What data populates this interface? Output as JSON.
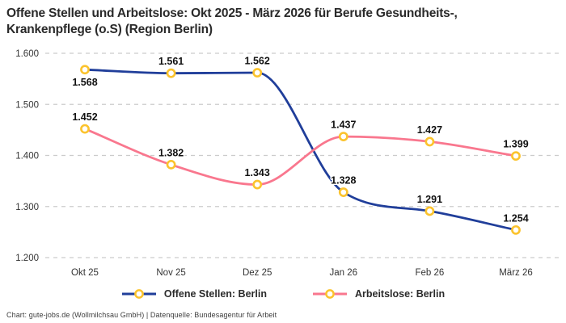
{
  "header": {
    "title_lines": [
      "Offene Stellen und Arbeitslose: Okt 2025 - März 2026 für Berufe Gesundheits-,",
      "Krankenpflege (o.S) (Region Berlin)"
    ]
  },
  "footer": {
    "text": "Chart: gute-jobs.de (Wollmilchsau GmbH) | Datenquelle: Bundesagentur für Arbeit"
  },
  "colors": {
    "title": "#2a2a2a",
    "grid": "#cccccc",
    "axis_text": "#333333",
    "data_label": "#111111",
    "footer_text": "#3d3d3d"
  },
  "chart_data": {
    "type": "line",
    "title": "Offene Stellen und Arbeitslose: Okt 2025 - März 2026 für Berufe Gesundheits-, Krankenpflege (o.S) (Region Berlin)",
    "categories": [
      "Okt 25",
      "Nov 25",
      "Dez 25",
      "Jan 26",
      "Feb 26",
      "März 26"
    ],
    "series": [
      {
        "name": "Offene Stellen: Berlin",
        "color": "#203e9a",
        "values": [
          1568,
          1561,
          1562,
          1328,
          1291,
          1254
        ],
        "point_labels": [
          "1.568",
          "1.561",
          "1.562",
          "1.328",
          "1.291",
          "1.254"
        ],
        "label_placement": [
          "below",
          "above",
          "above",
          "above",
          "above",
          "above"
        ]
      },
      {
        "name": "Arbeitslose: Berlin",
        "color": "#f9778e",
        "values": [
          1452,
          1382,
          1343,
          1437,
          1427,
          1399
        ],
        "point_labels": [
          "1.452",
          "1.382",
          "1.343",
          "1.437",
          "1.427",
          "1.399"
        ],
        "label_placement": [
          "above",
          "above",
          "above",
          "above",
          "above",
          "above"
        ]
      }
    ],
    "xlabel": "",
    "ylabel": "",
    "ylim": [
      1200,
      1600
    ],
    "yticks": [
      1200,
      1300,
      1400,
      1500,
      1600
    ],
    "ytick_labels": [
      "1.200",
      "1.300",
      "1.400",
      "1.500",
      "1.600"
    ],
    "grid": "horizontal-dashed",
    "curve": "smooth",
    "legend_position": "bottom",
    "marker": {
      "shape": "circle",
      "fill": "#ffffff",
      "stroke": "#fbc32d"
    }
  }
}
